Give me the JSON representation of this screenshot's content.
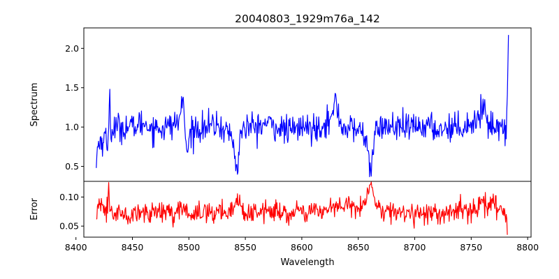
{
  "chart_data": {
    "title": "20040803_1929m76a_142",
    "xlabel": "Wavelength",
    "xlim": [
      8407,
      8803
    ],
    "xticks": [
      8400,
      8450,
      8500,
      8550,
      8600,
      8650,
      8700,
      8750,
      8800
    ],
    "xtick_labels": [
      "8400",
      "8450",
      "8500",
      "8550",
      "8600",
      "8650",
      "8700",
      "8750",
      "8800"
    ],
    "panels": [
      {
        "type": "line",
        "ylabel": "Spectrum",
        "ylim": [
          0.31,
          2.26
        ],
        "yticks": [
          0.5,
          1.0,
          1.5,
          2.0
        ],
        "ytick_labels": [
          "0.5",
          "1.0",
          "1.5",
          "2.0"
        ],
        "color": "#0000ff",
        "x_start": 8418,
        "x_end": 8783,
        "anchors": [
          [
            8418,
            0.48
          ],
          [
            8419,
            0.75
          ],
          [
            8420,
            0.82
          ],
          [
            8421,
            0.72
          ],
          [
            8422,
            0.88
          ],
          [
            8424,
            0.8
          ],
          [
            8426,
            0.92
          ],
          [
            8428,
            0.7
          ],
          [
            8429,
            0.98
          ],
          [
            8430,
            1.48
          ],
          [
            8431,
            0.85
          ],
          [
            8432,
            0.97
          ],
          [
            8435,
            1.0
          ],
          [
            8450,
            1.0
          ],
          [
            8460,
            1.05
          ],
          [
            8470,
            0.98
          ],
          [
            8480,
            1.0
          ],
          [
            8490,
            1.05
          ],
          [
            8493,
            1.2
          ],
          [
            8495,
            1.38
          ],
          [
            8496,
            1.1
          ],
          [
            8497,
            0.85
          ],
          [
            8498,
            0.72
          ],
          [
            8499,
            0.68
          ],
          [
            8500,
            0.85
          ],
          [
            8503,
            0.97
          ],
          [
            8515,
            1.0
          ],
          [
            8525,
            1.02
          ],
          [
            8530,
            0.98
          ],
          [
            8535,
            0.95
          ],
          [
            8538,
            0.85
          ],
          [
            8540,
            0.72
          ],
          [
            8542,
            0.52
          ],
          [
            8543,
            0.4
          ],
          [
            8544,
            0.68
          ],
          [
            8546,
            0.92
          ],
          [
            8549,
            1.0
          ],
          [
            8560,
            1.0
          ],
          [
            8570,
            1.05
          ],
          [
            8580,
            0.98
          ],
          [
            8590,
            0.95
          ],
          [
            8600,
            1.0
          ],
          [
            8610,
            0.98
          ],
          [
            8620,
            1.05
          ],
          [
            8625,
            1.1
          ],
          [
            8628,
            1.15
          ],
          [
            8630,
            1.42
          ],
          [
            8632,
            1.15
          ],
          [
            8636,
            1.0
          ],
          [
            8645,
            0.98
          ],
          [
            8652,
            0.95
          ],
          [
            8656,
            0.88
          ],
          [
            8659,
            0.7
          ],
          [
            8661,
            0.45
          ],
          [
            8663,
            0.65
          ],
          [
            8665,
            0.9
          ],
          [
            8668,
            1.0
          ],
          [
            8680,
            1.0
          ],
          [
            8690,
            0.98
          ],
          [
            8700,
            1.0
          ],
          [
            8710,
            1.02
          ],
          [
            8720,
            0.97
          ],
          [
            8730,
            1.0
          ],
          [
            8740,
            1.0
          ],
          [
            8750,
            1.05
          ],
          [
            8755,
            1.1
          ],
          [
            8760,
            1.2
          ],
          [
            8762,
            1.35
          ],
          [
            8764,
            1.05
          ],
          [
            8770,
            1.0
          ],
          [
            8775,
            1.05
          ],
          [
            8779,
            0.98
          ],
          [
            8781,
            0.85
          ],
          [
            8782,
            1.4
          ],
          [
            8783,
            2.17
          ]
        ],
        "noise_sd": 0.09
      },
      {
        "type": "line",
        "ylabel": "Error",
        "ylim": [
          0.031,
          0.127
        ],
        "yticks": [
          0.05,
          0.1
        ],
        "ytick_labels": [
          "0.05",
          "0.10"
        ],
        "color": "#ff0000",
        "x_start": 8418,
        "x_end": 8782,
        "anchors": [
          [
            8418,
            0.062
          ],
          [
            8419,
            0.084
          ],
          [
            8422,
            0.076
          ],
          [
            8425,
            0.085
          ],
          [
            8428,
            0.072
          ],
          [
            8429,
            0.125
          ],
          [
            8430,
            0.075
          ],
          [
            8435,
            0.073
          ],
          [
            8445,
            0.068
          ],
          [
            8448,
            0.055
          ],
          [
            8450,
            0.07
          ],
          [
            8460,
            0.075
          ],
          [
            8470,
            0.072
          ],
          [
            8480,
            0.075
          ],
          [
            8490,
            0.072
          ],
          [
            8495,
            0.083
          ],
          [
            8500,
            0.072
          ],
          [
            8520,
            0.073
          ],
          [
            8535,
            0.077
          ],
          [
            8540,
            0.085
          ],
          [
            8542,
            0.098
          ],
          [
            8544,
            0.085
          ],
          [
            8550,
            0.073
          ],
          [
            8570,
            0.075
          ],
          [
            8590,
            0.072
          ],
          [
            8610,
            0.075
          ],
          [
            8630,
            0.082
          ],
          [
            8640,
            0.085
          ],
          [
            8650,
            0.082
          ],
          [
            8655,
            0.09
          ],
          [
            8659,
            0.105
          ],
          [
            8661,
            0.122
          ],
          [
            8663,
            0.11
          ],
          [
            8666,
            0.09
          ],
          [
            8670,
            0.078
          ],
          [
            8680,
            0.076
          ],
          [
            8700,
            0.072
          ],
          [
            8720,
            0.072
          ],
          [
            8740,
            0.075
          ],
          [
            8755,
            0.078
          ],
          [
            8760,
            0.095
          ],
          [
            8764,
            0.08
          ],
          [
            8770,
            0.09
          ],
          [
            8775,
            0.078
          ],
          [
            8779,
            0.068
          ],
          [
            8781,
            0.07
          ],
          [
            8782,
            0.035
          ]
        ],
        "noise_sd": 0.009
      }
    ]
  }
}
